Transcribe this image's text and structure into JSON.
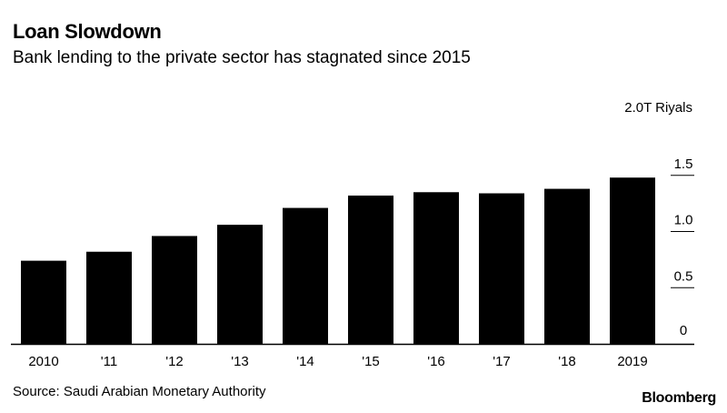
{
  "header": {
    "title": "Loan Slowdown",
    "subtitle": "Bank lending to the private sector has stagnated since 2015"
  },
  "footer": {
    "source": "Source: Saudi Arabian Monetary Authority",
    "brand": "Bloomberg"
  },
  "chart_data": {
    "type": "bar",
    "title": "Loan Slowdown",
    "subtitle": "Bank lending to the private sector has stagnated since 2015",
    "categories": [
      "2010",
      "'11",
      "'12",
      "'13",
      "'14",
      "'15",
      "'16",
      "'17",
      "'18",
      "2019"
    ],
    "values": [
      0.74,
      0.82,
      0.96,
      1.06,
      1.21,
      1.32,
      1.35,
      1.34,
      1.38,
      1.48
    ],
    "ylabel": "2.0T Riyals",
    "yticks": [
      0,
      0.5,
      1.0,
      1.5,
      2.0
    ],
    "ytick_labels": [
      "0",
      "0.5",
      "1.0",
      "1.5",
      "2.0T Riyals"
    ],
    "ylim": [
      0,
      2.0
    ],
    "y_axis_side": "right",
    "grid": false,
    "bar_color": "#000000",
    "source": "Source: Saudi Arabian Monetary Authority"
  }
}
